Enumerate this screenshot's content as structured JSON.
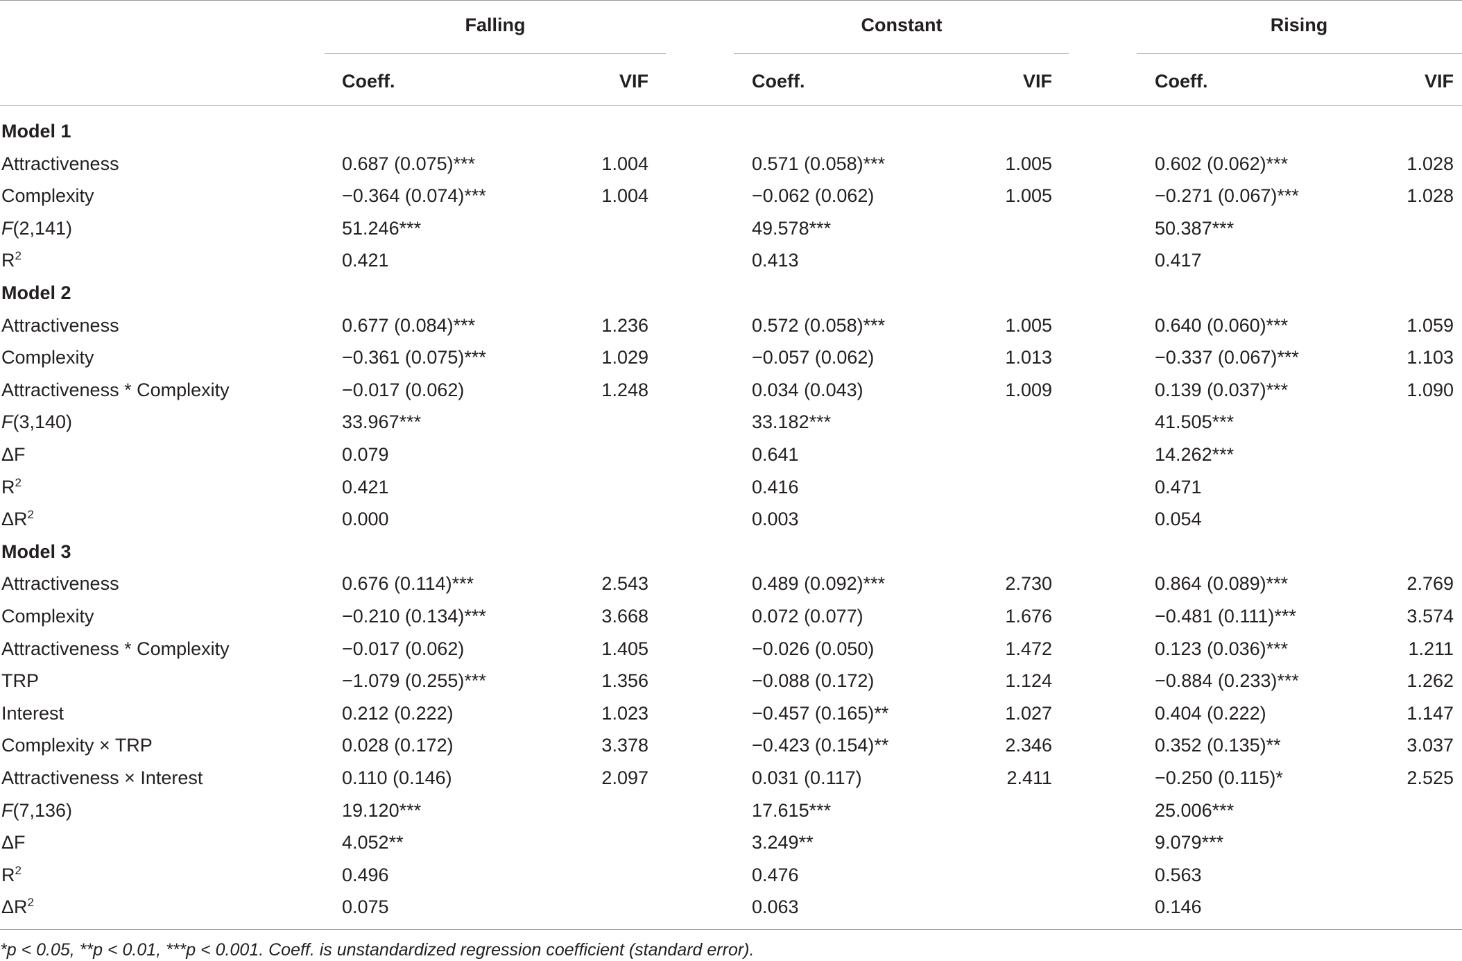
{
  "groups": [
    "Falling",
    "Constant",
    "Rising"
  ],
  "subheaders": {
    "coeff": "Coeff.",
    "vif": "VIF"
  },
  "rows": [
    {
      "type": "section",
      "label": "Model 1"
    },
    {
      "label": "Attractiveness",
      "cells": [
        [
          "0.687 (0.075)***",
          "1.004"
        ],
        [
          "0.571 (0.058)***",
          "1.005"
        ],
        [
          "0.602 (0.062)***",
          "1.028"
        ]
      ]
    },
    {
      "label": "Complexity",
      "cells": [
        [
          "−0.364 (0.074)***",
          "1.004"
        ],
        [
          "−0.062 (0.062)",
          "1.005"
        ],
        [
          "−0.271 (0.067)***",
          "1.028"
        ]
      ]
    },
    {
      "label": "F(2,141)",
      "label_italic": "F",
      "label_rest": "(2,141)",
      "cells": [
        [
          "51.246***",
          ""
        ],
        [
          "49.578***",
          ""
        ],
        [
          "50.387***",
          ""
        ]
      ]
    },
    {
      "label": "R2",
      "label_base": "R",
      "label_sup": "2",
      "cells": [
        [
          "0.421",
          ""
        ],
        [
          "0.413",
          ""
        ],
        [
          "0.417",
          ""
        ]
      ]
    },
    {
      "type": "section",
      "label": "Model 2"
    },
    {
      "label": "Attractiveness",
      "cells": [
        [
          "0.677 (0.084)***",
          "1.236"
        ],
        [
          "0.572 (0.058)***",
          "1.005"
        ],
        [
          "0.640 (0.060)***",
          "1.059"
        ]
      ]
    },
    {
      "label": "Complexity",
      "cells": [
        [
          "−0.361 (0.075)***",
          "1.029"
        ],
        [
          "−0.057 (0.062)",
          "1.013"
        ],
        [
          "−0.337 (0.067)***",
          "1.103"
        ]
      ]
    },
    {
      "label": "Attractiveness * Complexity",
      "cells": [
        [
          "−0.017 (0.062)",
          "1.248"
        ],
        [
          "0.034 (0.043)",
          "1.009"
        ],
        [
          "0.139 (0.037)***",
          "1.090"
        ]
      ]
    },
    {
      "label": "F(3,140)",
      "label_italic": "F",
      "label_rest": "(3,140)",
      "cells": [
        [
          "33.967***",
          ""
        ],
        [
          "33.182***",
          ""
        ],
        [
          "41.505***",
          ""
        ]
      ]
    },
    {
      "label": "ΔF",
      "cells": [
        [
          "0.079",
          ""
        ],
        [
          "0.641",
          ""
        ],
        [
          "14.262***",
          ""
        ]
      ]
    },
    {
      "label": "R2",
      "label_base": "R",
      "label_sup": "2",
      "cells": [
        [
          "0.421",
          ""
        ],
        [
          "0.416",
          ""
        ],
        [
          "0.471",
          ""
        ]
      ]
    },
    {
      "label": "ΔR2",
      "label_base": "ΔR",
      "label_sup": "2",
      "cells": [
        [
          "0.000",
          ""
        ],
        [
          "0.003",
          ""
        ],
        [
          "0.054",
          ""
        ]
      ]
    },
    {
      "type": "section",
      "label": "Model 3"
    },
    {
      "label": "Attractiveness",
      "cells": [
        [
          "0.676 (0.114)***",
          "2.543"
        ],
        [
          "0.489 (0.092)***",
          "2.730"
        ],
        [
          "0.864 (0.089)***",
          "2.769"
        ]
      ]
    },
    {
      "label": "Complexity",
      "cells": [
        [
          "−0.210 (0.134)***",
          "3.668"
        ],
        [
          "0.072 (0.077)",
          "1.676"
        ],
        [
          "−0.481 (0.111)***",
          "3.574"
        ]
      ]
    },
    {
      "label": "Attractiveness * Complexity",
      "cells": [
        [
          "−0.017 (0.062)",
          "1.405"
        ],
        [
          "−0.026 (0.050)",
          "1.472"
        ],
        [
          "0.123 (0.036)***",
          "1.211"
        ]
      ]
    },
    {
      "label": "TRP",
      "cells": [
        [
          "−1.079 (0.255)***",
          "1.356"
        ],
        [
          "−0.088 (0.172)",
          "1.124"
        ],
        [
          "−0.884 (0.233)***",
          "1.262"
        ]
      ]
    },
    {
      "label": "Interest",
      "cells": [
        [
          "0.212 (0.222)",
          "1.023"
        ],
        [
          "−0.457 (0.165)**",
          "1.027"
        ],
        [
          "0.404 (0.222)",
          "1.147"
        ]
      ]
    },
    {
      "label": "Complexity × TRP",
      "cells": [
        [
          "0.028 (0.172)",
          "3.378"
        ],
        [
          "−0.423 (0.154)**",
          "2.346"
        ],
        [
          "0.352 (0.135)**",
          "3.037"
        ]
      ]
    },
    {
      "label": "Attractiveness × Interest",
      "cells": [
        [
          "0.110 (0.146)",
          "2.097"
        ],
        [
          "0.031 (0.117)",
          "2.411"
        ],
        [
          "−0.250 (0.115)*",
          "2.525"
        ]
      ]
    },
    {
      "label": "F(7,136)",
      "label_italic": "F",
      "label_rest": "(7,136)",
      "cells": [
        [
          "19.120***",
          ""
        ],
        [
          "17.615***",
          ""
        ],
        [
          "25.006***",
          ""
        ]
      ]
    },
    {
      "label": "ΔF",
      "cells": [
        [
          "4.052**",
          ""
        ],
        [
          "3.249**",
          ""
        ],
        [
          "9.079***",
          ""
        ]
      ]
    },
    {
      "label": "R2",
      "label_base": "R",
      "label_sup": "2",
      "cells": [
        [
          "0.496",
          ""
        ],
        [
          "0.476",
          ""
        ],
        [
          "0.563",
          ""
        ]
      ]
    },
    {
      "label": "ΔR2",
      "label_base": "ΔR",
      "label_sup": "2",
      "cells": [
        [
          "0.075",
          ""
        ],
        [
          "0.063",
          ""
        ],
        [
          "0.146",
          ""
        ]
      ]
    }
  ],
  "footnote": "*p < 0.05, **p < 0.01, ***p < 0.001. Coeff. is unstandardized regression coefficient (standard error)."
}
